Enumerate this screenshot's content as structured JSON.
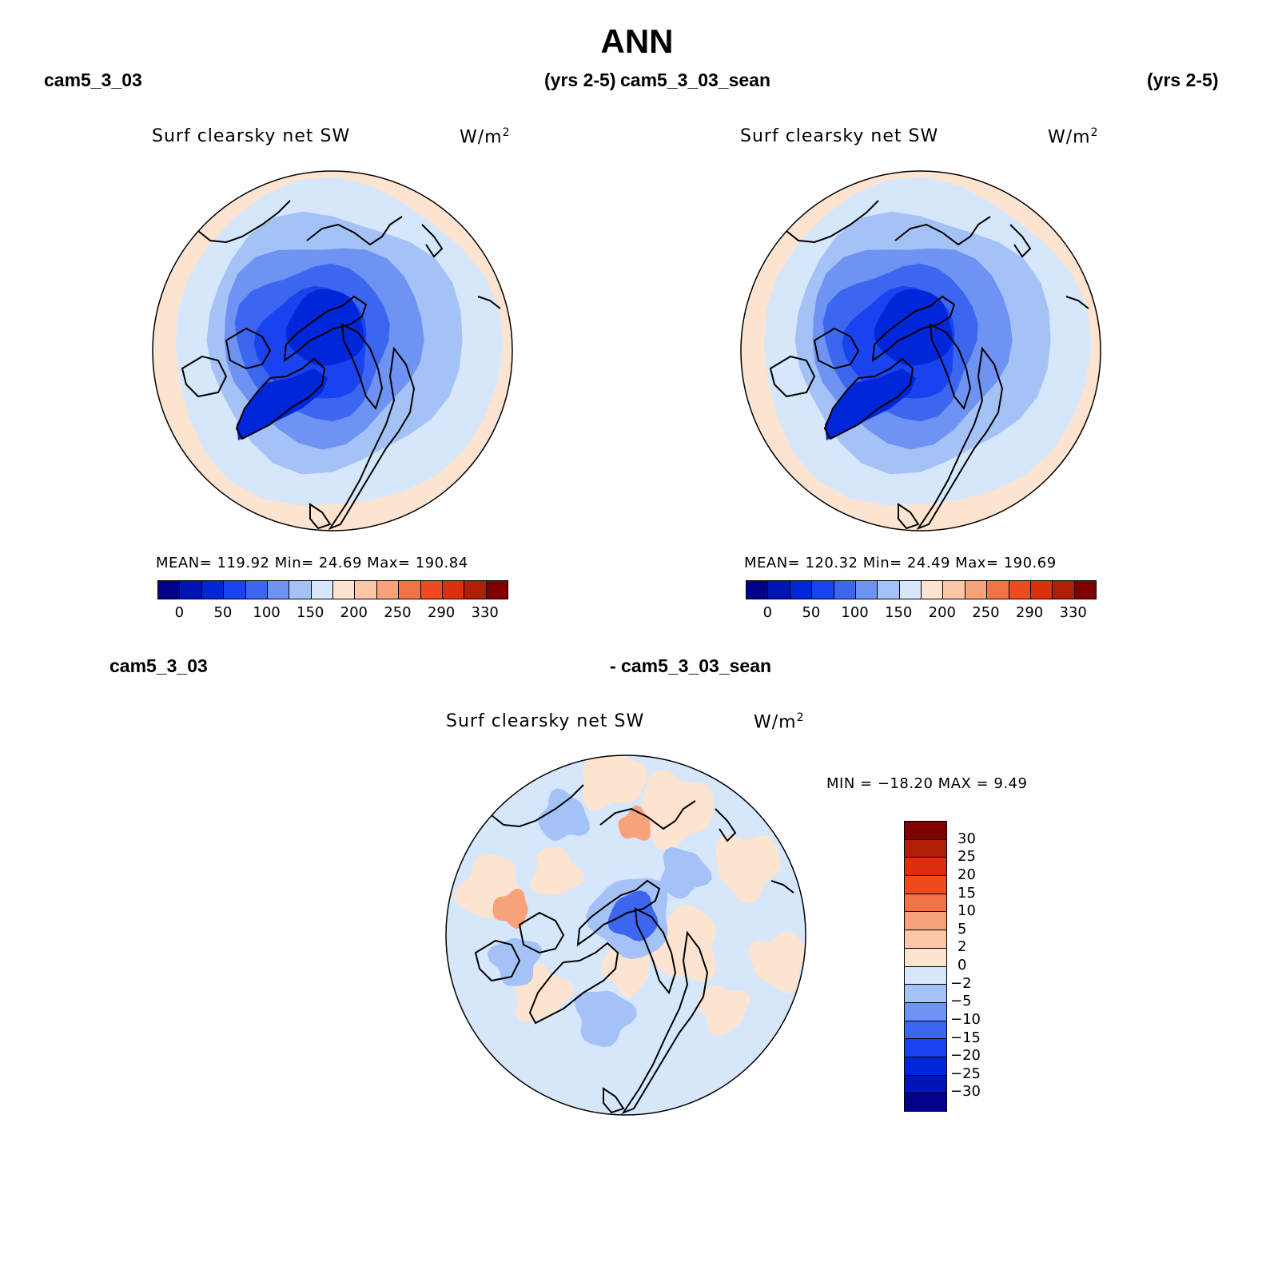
{
  "title": "ANN",
  "headers": {
    "top_left_case": "cam5_3_03",
    "top_left_yrs": "(yrs 2-5)",
    "top_right_case": "cam5_3_03_sean",
    "top_right_yrs": "(yrs 2-5)",
    "bottom_left_case": "cam5_3_03",
    "bottom_center_case": "- cam5_3_03_sean"
  },
  "panels": [
    {
      "variable": "Surf clearsky net SW",
      "units": "W/m",
      "units_exp": "2",
      "stats": "MEAN=  119.92   Min=   24.69   Max=  190.84"
    },
    {
      "variable": "Surf clearsky net SW",
      "units": "W/m",
      "units_exp": "2",
      "stats": "MEAN=  120.32   Min=   24.49   Max=  190.69"
    },
    {
      "variable": "Surf clearsky net SW",
      "units": "W/m",
      "units_exp": "2",
      "stats": "MIN  = −18.20  MAX =    9.49"
    }
  ],
  "colorbar_main": {
    "colors": [
      "#00008b",
      "#0015b5",
      "#0026d9",
      "#1a43f0",
      "#3d66f0",
      "#6e93f2",
      "#a5c2f7",
      "#d6e6fb",
      "#fde4d0",
      "#fbc7a6",
      "#f7a27a",
      "#f37348",
      "#f04a1f",
      "#dc2f0c",
      "#b01e06",
      "#800000"
    ],
    "ticks": [
      "0",
      "50",
      "100",
      "150",
      "200",
      "250",
      "290",
      "330"
    ]
  },
  "colorbar_diff": {
    "colors": [
      "#800000",
      "#b01e06",
      "#dc2f0c",
      "#f04a1f",
      "#f37348",
      "#f7a27a",
      "#fbc7a6",
      "#fde4d0",
      "#d6e6fb",
      "#a5c2f7",
      "#6e93f2",
      "#3d66f0",
      "#1a43f0",
      "#0026d9",
      "#0015b5",
      "#00008b"
    ],
    "ticks": [
      "30",
      "25",
      "20",
      "15",
      "10",
      "5",
      "2",
      "0",
      "−2",
      "−5",
      "−10",
      "−15",
      "−20",
      "−25",
      "−30"
    ]
  },
  "map_colors": {
    "ring_outer": "#fde4d0",
    "ring1": "#d6e6fb",
    "ring2": "#a5c2f7",
    "ring3": "#6e93f2",
    "ring4": "#3d66f0",
    "ring5": "#1a43f0",
    "core": "#0026d9",
    "diff_bg": "#d6e6fb",
    "diff_warm": "#fde4d0",
    "diff_warm2": "#f7a27a",
    "diff_cool": "#a5c2f7",
    "diff_cool2": "#3d66f0",
    "coast": "#000000"
  }
}
